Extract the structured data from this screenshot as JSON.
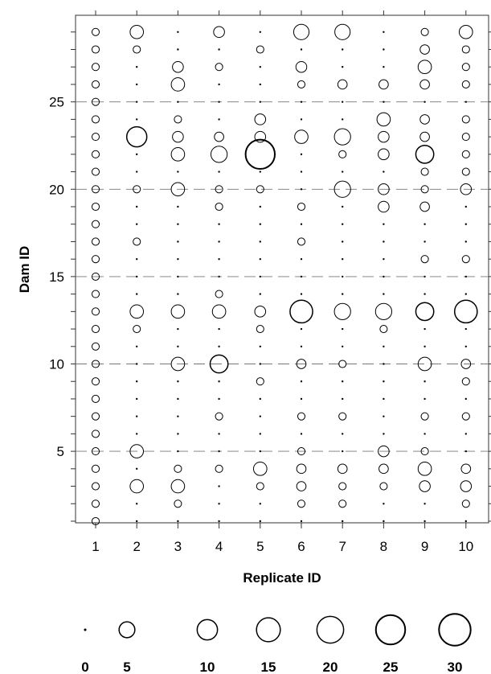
{
  "chart_data": {
    "type": "scatter",
    "subtype": "bubble-matrix",
    "xlabel": "Replicate ID",
    "ylabel": "Dam ID",
    "x_ticks": [
      1,
      2,
      3,
      4,
      5,
      6,
      7,
      8,
      9,
      10
    ],
    "y_ticks": [
      5,
      10,
      15,
      20,
      25
    ],
    "x_range": [
      0.5,
      10.5
    ],
    "y_range": [
      0.3,
      29.7
    ],
    "y_gridlines_dashed": [
      5,
      10,
      15,
      20,
      25
    ],
    "legend": {
      "sizes": [
        0,
        5,
        10,
        15,
        20,
        25,
        30
      ],
      "placement": "bottom"
    },
    "series": [
      {
        "replicate": 1,
        "values": [
          1,
          1,
          1,
          1,
          1,
          1,
          1,
          1,
          1,
          1,
          1,
          1,
          1,
          1,
          1,
          1,
          1,
          1,
          1,
          1,
          1,
          1,
          1,
          1,
          1,
          1,
          1,
          1,
          1
        ]
      },
      {
        "replicate": 2,
        "values": [
          0,
          0,
          5,
          0,
          5,
          0,
          0,
          0,
          0,
          0,
          0,
          1,
          5,
          0,
          0,
          0,
          1,
          0,
          0,
          1,
          0,
          0,
          13,
          0,
          0,
          0,
          0,
          1,
          5
        ]
      },
      {
        "replicate": 3,
        "values": [
          0,
          1,
          5,
          1,
          0,
          0,
          0,
          0,
          0,
          5,
          0,
          0,
          5,
          0,
          0,
          0,
          0,
          0,
          0,
          5,
          0,
          5,
          3,
          1,
          0,
          5,
          3,
          0,
          0
        ]
      },
      {
        "replicate": 4,
        "values": [
          0,
          0,
          0,
          1,
          0,
          0,
          1,
          0,
          0,
          10,
          0,
          0,
          5,
          1,
          0,
          0,
          0,
          0,
          1,
          1,
          0,
          8,
          2,
          0,
          0,
          0,
          1,
          0,
          3
        ]
      },
      {
        "replicate": 5,
        "values": [
          0,
          0,
          1,
          5,
          0,
          0,
          0,
          0,
          1,
          0,
          0,
          1,
          3,
          0,
          0,
          0,
          0,
          0,
          0,
          1,
          0,
          30,
          3,
          3,
          0,
          0,
          0,
          1,
          0
        ]
      },
      {
        "replicate": 6,
        "values": [
          0,
          1,
          2,
          2,
          1,
          0,
          1,
          0,
          0,
          2,
          0,
          0,
          17,
          0,
          0,
          0,
          1,
          0,
          1,
          0,
          0,
          0,
          5,
          0,
          0,
          1,
          3,
          0,
          7
        ]
      },
      {
        "replicate": 7,
        "values": [
          0,
          1,
          1,
          2,
          0,
          0,
          1,
          0,
          0,
          1,
          0,
          0,
          8,
          0,
          0,
          0,
          0,
          0,
          0,
          8,
          0,
          1,
          8,
          0,
          0,
          2,
          0,
          0,
          7
        ]
      },
      {
        "replicate": 8,
        "values": [
          0,
          0,
          1,
          2,
          3,
          0,
          0,
          0,
          0,
          0,
          0,
          1,
          8,
          0,
          0,
          0,
          0,
          0,
          3,
          3,
          0,
          3,
          3,
          5,
          0,
          2,
          0,
          0,
          0
        ]
      },
      {
        "replicate": 9,
        "values": [
          0,
          0,
          3,
          5,
          1,
          0,
          1,
          0,
          0,
          5,
          0,
          0,
          10,
          0,
          0,
          1,
          0,
          0,
          2,
          1,
          1,
          10,
          2,
          2,
          0,
          2,
          5,
          2,
          1
        ]
      },
      {
        "replicate": 10,
        "values": [
          0,
          1,
          3,
          2,
          0,
          0,
          1,
          0,
          1,
          2,
          0,
          0,
          17,
          0,
          0,
          1,
          0,
          0,
          0,
          3,
          1,
          1,
          1,
          1,
          0,
          1,
          1,
          1,
          5
        ]
      }
    ]
  }
}
